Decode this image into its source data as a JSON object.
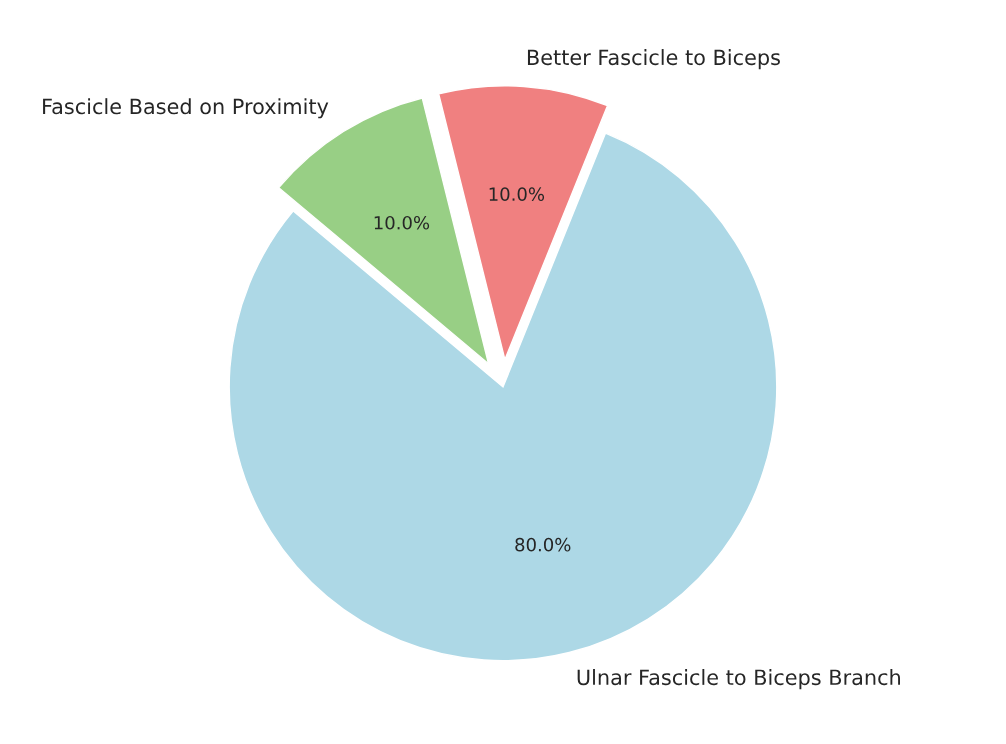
{
  "chart_data": {
    "type": "pie",
    "categories": [
      "Ulnar Fascicle to Biceps Branch",
      "Better Fascicle to Biceps",
      "Fascicle Based on Proximity"
    ],
    "values": [
      80,
      10,
      10
    ],
    "value_labels": [
      "80.0%",
      "10.0%",
      "10.0%"
    ],
    "colors": [
      "#add8e6",
      "#f08080",
      "#98cf85"
    ]
  }
}
